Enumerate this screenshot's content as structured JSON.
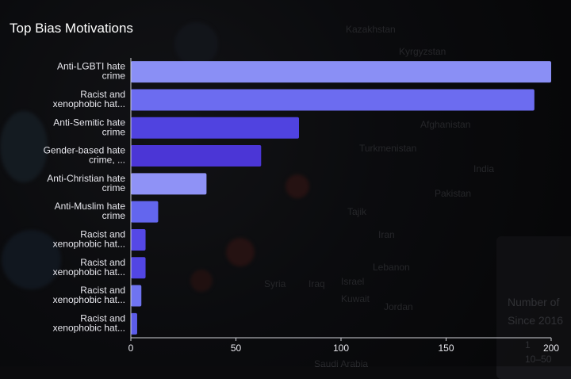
{
  "background_labels": [
    "Kazakhstan",
    "Kyrgyzstan",
    "Turkmenistan",
    "India",
    "Pakistan",
    "Tajik",
    "Iran",
    "Syria",
    "Iraq",
    "Kuwait",
    "Israel",
    "Jordan",
    "Saudi Arabia",
    "Afghanistan",
    "Lebanon"
  ],
  "legend_bg": {
    "title": "Number of",
    "subtitle": "Since 2016",
    "entry_1": "1",
    "entry_2": "10–50"
  },
  "chart_data": {
    "type": "bar",
    "orientation": "horizontal",
    "title": "Top Bias Motivations",
    "categories": [
      [
        "Anti-LGBTI hate",
        "crime"
      ],
      [
        "Racist and",
        "xenophobic hat..."
      ],
      [
        "Anti-Semitic hate",
        "crime"
      ],
      [
        "Gender-based hate",
        "crime, ..."
      ],
      [
        "Anti-Christian hate",
        "crime"
      ],
      [
        "Anti-Muslim hate",
        "crime"
      ],
      [
        "Racist and",
        "xenophobic hat..."
      ],
      [
        "Racist and",
        "xenophobic hat..."
      ],
      [
        "Racist and",
        "xenophobic hat..."
      ],
      [
        "Racist and",
        "xenophobic hat..."
      ]
    ],
    "values": [
      200,
      192,
      80,
      62,
      36,
      13,
      7,
      7,
      5,
      3
    ],
    "colors": [
      "#8a8ff5",
      "#6c6cf0",
      "#5043e0",
      "#4b36d6",
      "#8f92f6",
      "#6366ee",
      "#5548e6",
      "#5246e3",
      "#6f74f0",
      "#5c5ce9"
    ],
    "xlim": [
      0,
      200
    ],
    "xticks": [
      0,
      50,
      100,
      150,
      200
    ],
    "grid": false
  }
}
